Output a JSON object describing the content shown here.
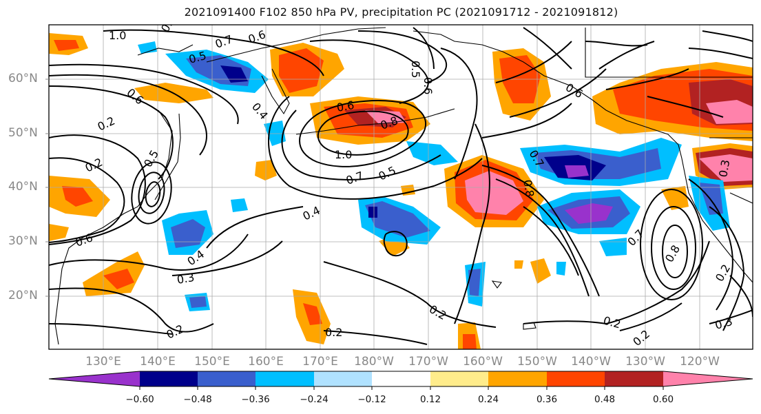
{
  "title": "2021091400 F102 850 hPa PV, precipitation PC (2021091712 - 2021091812)",
  "lat_labels": [
    "60°N",
    "50°N",
    "40°N",
    "30°N",
    "20°N"
  ],
  "lon_labels": [
    "130°E",
    "140°E",
    "150°E",
    "160°E",
    "170°E",
    "180°W",
    "170°W",
    "160°W",
    "150°W",
    "140°W",
    "130°W",
    "120°W"
  ],
  "colorbar": {
    "ticks": [
      "−0.60",
      "−0.48",
      "−0.36",
      "−0.24",
      "−0.12",
      "0.12",
      "0.24",
      "0.36",
      "0.48",
      "0.60"
    ],
    "colors": [
      "#9932cc",
      "#00008b",
      "#3a5fcd",
      "#00bfff",
      "#b0e2ff",
      "#ffffff",
      "#ffec8b",
      "#ffa500",
      "#ff4500",
      "#b22222",
      "#ff82ab"
    ]
  },
  "contour_labels": [
    "1.0",
    "0.8",
    "0.7",
    "0.6",
    "0.5",
    "0.6",
    "0.4",
    "0.5",
    "0.6",
    "0.2",
    "0.2",
    "0.5",
    "0.6",
    "0.6",
    "0.8",
    "1.0",
    "0.7",
    "0.5",
    "0.4",
    "0.4",
    "0.3",
    "0.2",
    "0.2",
    "0.2",
    "0.2",
    "0.2",
    "0.3",
    "0.2",
    "0.7",
    "0.8",
    "0.6",
    "0.7",
    "0.8",
    "0.3"
  ]
}
